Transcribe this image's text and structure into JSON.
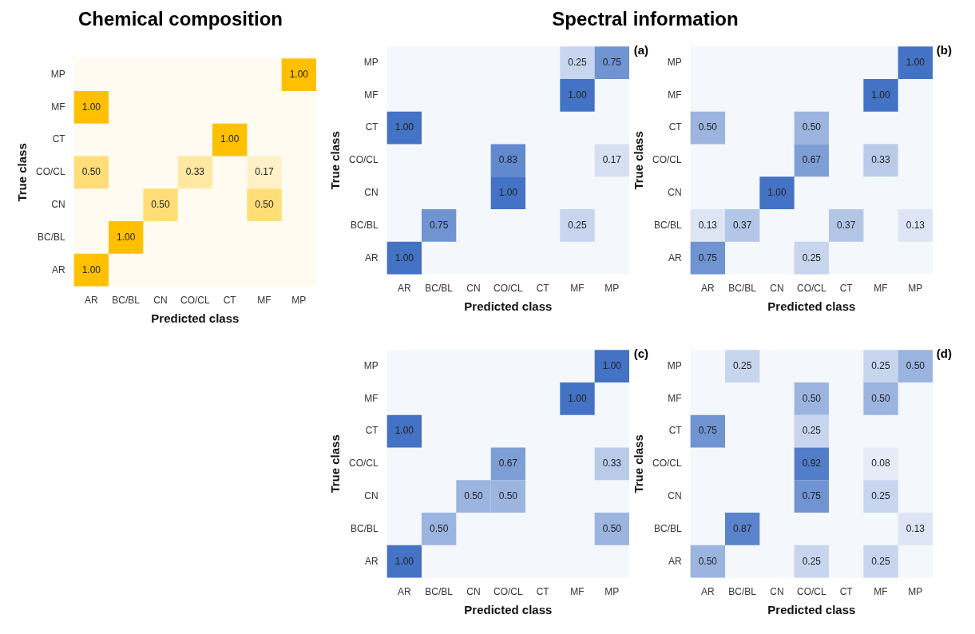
{
  "chart_data": [
    {
      "type": "heatmap",
      "title": "Chemical composition",
      "xlabel": "Predicted class",
      "ylabel": "True class",
      "color": "#ffc000",
      "categories": [
        "AR",
        "BC/BL",
        "CN",
        "CO/CL",
        "CT",
        "MF",
        "MP"
      ],
      "y_categories": [
        "MP",
        "MF",
        "CT",
        "CO/CL",
        "CN",
        "BC/BL",
        "AR"
      ],
      "cells": [
        [
          null,
          null,
          null,
          null,
          null,
          null,
          1.0
        ],
        [
          1.0,
          null,
          null,
          null,
          null,
          null,
          null
        ],
        [
          null,
          null,
          null,
          null,
          1.0,
          null,
          null
        ],
        [
          0.5,
          null,
          null,
          0.33,
          null,
          0.17,
          null
        ],
        [
          null,
          null,
          0.5,
          null,
          null,
          0.5,
          null
        ],
        [
          null,
          1.0,
          null,
          null,
          null,
          null,
          null
        ],
        [
          1.0,
          null,
          null,
          null,
          null,
          null,
          null
        ]
      ],
      "cell_labels": [
        [
          null,
          null,
          null,
          null,
          null,
          null,
          "1.00"
        ],
        [
          "1.00",
          null,
          null,
          null,
          null,
          null,
          null
        ],
        [
          null,
          null,
          null,
          null,
          "1.00",
          null,
          null
        ],
        [
          "0.50",
          null,
          null,
          "0.33",
          null,
          "0.17",
          null
        ],
        [
          null,
          null,
          "0.50",
          null,
          null,
          "0.50",
          null
        ],
        [
          null,
          "1.00",
          null,
          null,
          null,
          null,
          null
        ],
        [
          "1.00",
          null,
          null,
          null,
          null,
          null,
          null
        ]
      ]
    },
    {
      "type": "heatmap",
      "title": "Spectral information",
      "annotations": [
        "(a)"
      ],
      "xlabel": "Predicted class",
      "ylabel": "True class",
      "color": "#4472c4",
      "categories": [
        "AR",
        "BC/BL",
        "CN",
        "CO/CL",
        "CT",
        "MF",
        "MP"
      ],
      "y_categories": [
        "MP",
        "MF",
        "CT",
        "CO/CL",
        "CN",
        "BC/BL",
        "AR"
      ],
      "cells": [
        [
          null,
          null,
          null,
          null,
          null,
          0.25,
          0.75
        ],
        [
          null,
          null,
          null,
          null,
          null,
          1.0,
          null
        ],
        [
          1.0,
          null,
          null,
          null,
          null,
          null,
          null
        ],
        [
          null,
          null,
          null,
          0.83,
          null,
          null,
          0.17
        ],
        [
          null,
          null,
          null,
          1.0,
          null,
          null,
          null
        ],
        [
          null,
          0.75,
          null,
          null,
          null,
          0.25,
          null
        ],
        [
          1.0,
          null,
          null,
          null,
          null,
          null,
          null
        ]
      ],
      "cell_labels": [
        [
          null,
          null,
          null,
          null,
          null,
          "0.25",
          "0.75"
        ],
        [
          null,
          null,
          null,
          null,
          null,
          "1.00",
          null
        ],
        [
          "1.00",
          null,
          null,
          null,
          null,
          null,
          null
        ],
        [
          null,
          null,
          null,
          "0.83",
          null,
          null,
          "0.17"
        ],
        [
          null,
          null,
          null,
          "1.00",
          null,
          null,
          null
        ],
        [
          null,
          "0.75",
          null,
          null,
          null,
          "0.25",
          null
        ],
        [
          "1.00",
          null,
          null,
          null,
          null,
          null,
          null
        ]
      ]
    },
    {
      "type": "heatmap",
      "annotations": [
        "(b)"
      ],
      "xlabel": "Predicted class",
      "ylabel": "True class",
      "color": "#4472c4",
      "categories": [
        "AR",
        "BC/BL",
        "CN",
        "CO/CL",
        "CT",
        "MF",
        "MP"
      ],
      "y_categories": [
        "MP",
        "MF",
        "CT",
        "CO/CL",
        "CN",
        "BC/BL",
        "AR"
      ],
      "cells": [
        [
          null,
          null,
          null,
          null,
          null,
          null,
          1.0
        ],
        [
          null,
          null,
          null,
          null,
          null,
          1.0,
          null
        ],
        [
          0.5,
          null,
          null,
          0.5,
          null,
          null,
          null
        ],
        [
          null,
          null,
          null,
          0.67,
          null,
          0.33,
          null
        ],
        [
          null,
          null,
          1.0,
          null,
          null,
          null,
          null
        ],
        [
          0.13,
          0.37,
          null,
          null,
          0.37,
          null,
          0.13
        ],
        [
          0.75,
          null,
          null,
          0.25,
          null,
          null,
          null
        ]
      ],
      "cell_labels": [
        [
          null,
          null,
          null,
          null,
          null,
          null,
          "1.00"
        ],
        [
          null,
          null,
          null,
          null,
          null,
          "1.00",
          null
        ],
        [
          "0.50",
          null,
          null,
          "0.50",
          null,
          null,
          null
        ],
        [
          null,
          null,
          null,
          "0.67",
          null,
          "0.33",
          null
        ],
        [
          null,
          null,
          "1.00",
          null,
          null,
          null,
          null
        ],
        [
          "0.13",
          "0.37",
          null,
          null,
          "0.37",
          null,
          "0.13"
        ],
        [
          "0.75",
          null,
          null,
          "0.25",
          null,
          null,
          null
        ]
      ]
    },
    {
      "type": "heatmap",
      "annotations": [
        "(c)"
      ],
      "xlabel": "Predicted class",
      "ylabel": "True class",
      "color": "#4472c4",
      "categories": [
        "AR",
        "BC/BL",
        "CN",
        "CO/CL",
        "CT",
        "MF",
        "MP"
      ],
      "y_categories": [
        "MP",
        "MF",
        "CT",
        "CO/CL",
        "CN",
        "BC/BL",
        "AR"
      ],
      "cells": [
        [
          null,
          null,
          null,
          null,
          null,
          null,
          1.0
        ],
        [
          null,
          null,
          null,
          null,
          null,
          1.0,
          null
        ],
        [
          1.0,
          null,
          null,
          null,
          null,
          null,
          null
        ],
        [
          null,
          null,
          null,
          0.67,
          null,
          null,
          0.33
        ],
        [
          null,
          null,
          0.5,
          0.5,
          null,
          null,
          null
        ],
        [
          null,
          0.5,
          null,
          null,
          null,
          null,
          0.5
        ],
        [
          1.0,
          null,
          null,
          null,
          null,
          null,
          null
        ]
      ],
      "cell_labels": [
        [
          null,
          null,
          null,
          null,
          null,
          null,
          "1.00"
        ],
        [
          null,
          null,
          null,
          null,
          null,
          "1.00",
          null
        ],
        [
          "1.00",
          null,
          null,
          null,
          null,
          null,
          null
        ],
        [
          null,
          null,
          null,
          "0.67",
          null,
          null,
          "0.33"
        ],
        [
          null,
          null,
          "0.50",
          "0.50",
          null,
          null,
          null
        ],
        [
          null,
          "0.50",
          null,
          null,
          null,
          null,
          "0.50"
        ],
        [
          "1.00",
          null,
          null,
          null,
          null,
          null,
          null
        ]
      ]
    },
    {
      "type": "heatmap",
      "annotations": [
        "(d)"
      ],
      "xlabel": "Predicted class",
      "ylabel": "True class",
      "color": "#4472c4",
      "categories": [
        "AR",
        "BC/BL",
        "CN",
        "CO/CL",
        "CT",
        "MF",
        "MP"
      ],
      "y_categories": [
        "MP",
        "MF",
        "CT",
        "CO/CL",
        "CN",
        "BC/BL",
        "AR"
      ],
      "cells": [
        [
          null,
          0.25,
          null,
          null,
          null,
          0.25,
          0.5
        ],
        [
          null,
          null,
          null,
          0.5,
          null,
          0.5,
          null
        ],
        [
          0.75,
          null,
          null,
          0.25,
          null,
          null,
          null
        ],
        [
          null,
          null,
          null,
          0.92,
          null,
          0.08,
          null
        ],
        [
          null,
          null,
          null,
          0.75,
          null,
          0.25,
          null
        ],
        [
          null,
          0.87,
          null,
          null,
          null,
          null,
          0.13
        ],
        [
          0.5,
          null,
          null,
          0.25,
          null,
          0.25,
          null
        ]
      ],
      "cell_labels": [
        [
          null,
          "0.25",
          null,
          null,
          null,
          "0.25",
          "0.50"
        ],
        [
          null,
          null,
          null,
          "0.50",
          null,
          "0.50",
          null
        ],
        [
          "0.75",
          null,
          null,
          "0.25",
          null,
          null,
          null
        ],
        [
          null,
          null,
          null,
          "0.92",
          null,
          "0.08",
          null
        ],
        [
          null,
          null,
          null,
          "0.75",
          null,
          "0.25",
          null
        ],
        [
          null,
          "0.87",
          null,
          null,
          null,
          null,
          "0.13"
        ],
        [
          "0.50",
          null,
          null,
          "0.25",
          null,
          "0.25",
          null
        ]
      ]
    }
  ]
}
